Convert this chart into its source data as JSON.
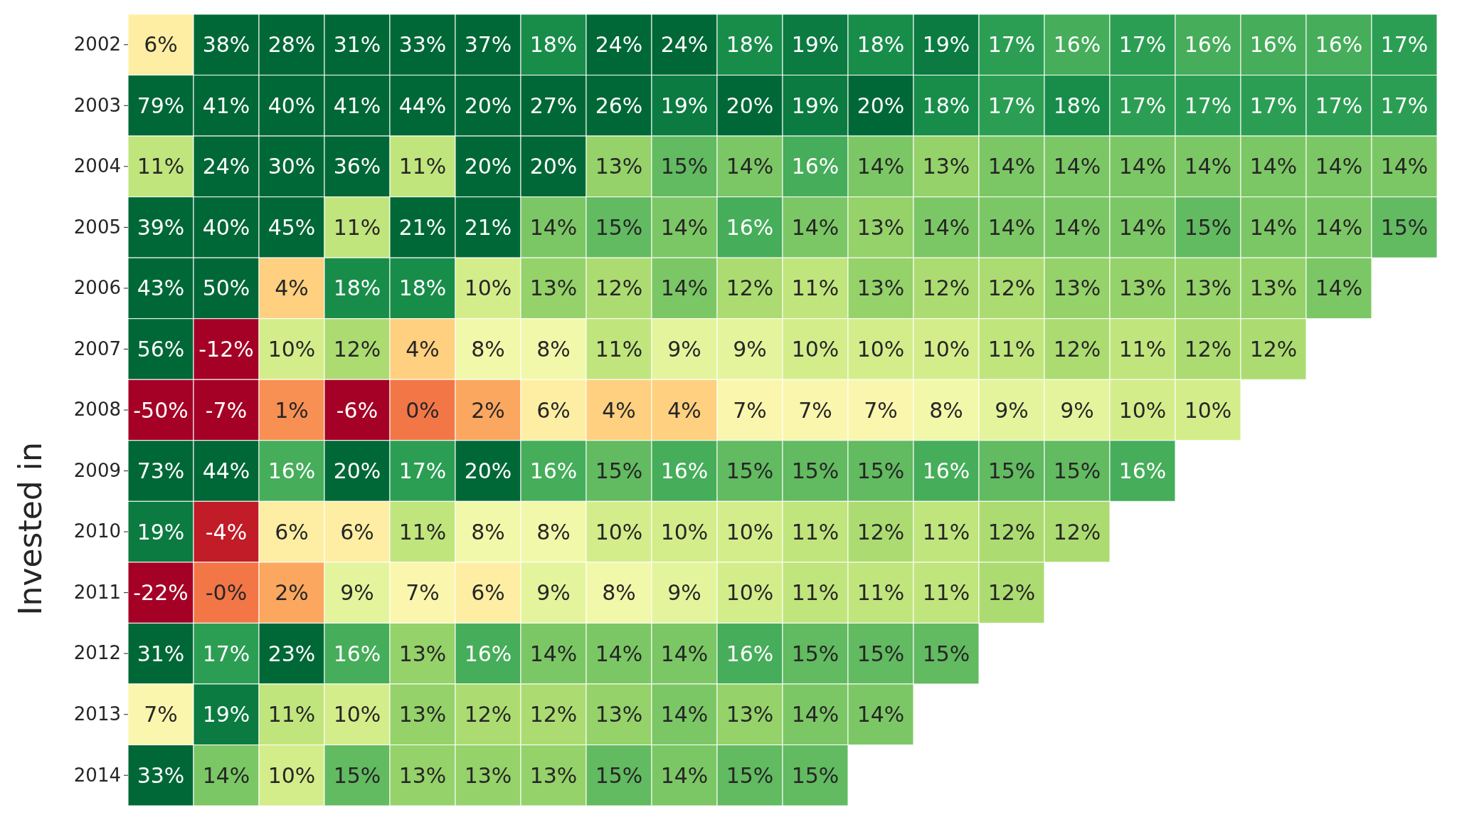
{
  "chart_data": {
    "type": "heatmap",
    "ylabel": "Invested in",
    "categories": [
      null,
      null,
      null,
      null,
      null,
      null,
      null,
      null,
      null,
      null,
      null,
      null,
      null,
      null,
      null,
      null,
      null,
      null,
      null,
      null
    ],
    "y_categories": [
      "2002",
      "2003",
      "2004",
      "2005",
      "2006",
      "2007",
      "2008",
      "2009",
      "2010",
      "2011",
      "2012",
      "2013",
      "2014"
    ],
    "cells": [
      [
        6,
        38,
        28,
        31,
        33,
        37,
        18,
        24,
        24,
        18,
        19,
        18,
        19,
        17,
        16,
        17,
        16,
        16,
        16,
        17
      ],
      [
        79,
        41,
        40,
        41,
        44,
        20,
        27,
        26,
        19,
        20,
        19,
        20,
        18,
        17,
        18,
        17,
        17,
        17,
        17,
        17
      ],
      [
        11,
        24,
        30,
        36,
        11,
        20,
        20,
        13,
        15,
        14,
        16,
        14,
        13,
        14,
        14,
        14,
        14,
        14,
        14,
        14
      ],
      [
        39,
        40,
        45,
        11,
        21,
        21,
        14,
        15,
        14,
        16,
        14,
        13,
        14,
        14,
        14,
        14,
        15,
        14,
        14,
        15
      ],
      [
        43,
        50,
        4,
        18,
        18,
        10,
        13,
        12,
        14,
        12,
        11,
        13,
        12,
        12,
        13,
        13,
        13,
        13,
        14,
        null
      ],
      [
        56,
        -12,
        10,
        12,
        4,
        8,
        8,
        11,
        9,
        9,
        10,
        10,
        10,
        11,
        12,
        11,
        12,
        12,
        null,
        null
      ],
      [
        -50,
        -7,
        1,
        -6,
        0,
        2,
        6,
        4,
        4,
        7,
        7,
        7,
        8,
        9,
        9,
        10,
        10,
        null,
        null,
        null
      ],
      [
        73,
        44,
        16,
        20,
        17,
        20,
        16,
        15,
        16,
        15,
        15,
        15,
        16,
        15,
        15,
        16,
        null,
        null,
        null,
        null
      ],
      [
        19,
        -4,
        6,
        6,
        11,
        8,
        8,
        10,
        10,
        10,
        11,
        12,
        11,
        12,
        12,
        null,
        null,
        null,
        null,
        null
      ],
      [
        -22,
        0,
        2,
        9,
        7,
        6,
        9,
        8,
        9,
        10,
        11,
        11,
        11,
        12,
        null,
        null,
        null,
        null,
        null,
        null
      ],
      [
        31,
        17,
        23,
        16,
        13,
        16,
        14,
        14,
        14,
        16,
        15,
        15,
        15,
        null,
        null,
        null,
        null,
        null,
        null,
        null
      ],
      [
        7,
        19,
        11,
        10,
        13,
        12,
        12,
        13,
        14,
        13,
        14,
        14,
        null,
        null,
        null,
        null,
        null,
        null,
        null,
        null
      ],
      [
        33,
        14,
        10,
        15,
        13,
        13,
        13,
        15,
        14,
        15,
        15,
        null,
        null,
        null,
        null,
        null,
        null,
        null,
        null,
        null
      ]
    ],
    "cell_labels": [
      [
        "6%",
        "38%",
        "28%",
        "31%",
        "33%",
        "37%",
        "18%",
        "24%",
        "24%",
        "18%",
        "19%",
        "18%",
        "19%",
        "17%",
        "16%",
        "17%",
        "16%",
        "16%",
        "16%",
        "17%"
      ],
      [
        "79%",
        "41%",
        "40%",
        "41%",
        "44%",
        "20%",
        "27%",
        "26%",
        "19%",
        "20%",
        "19%",
        "20%",
        "18%",
        "17%",
        "18%",
        "17%",
        "17%",
        "17%",
        "17%",
        "17%"
      ],
      [
        "11%",
        "24%",
        "30%",
        "36%",
        "11%",
        "20%",
        "20%",
        "13%",
        "15%",
        "14%",
        "16%",
        "14%",
        "13%",
        "14%",
        "14%",
        "14%",
        "14%",
        "14%",
        "14%",
        "14%"
      ],
      [
        "39%",
        "40%",
        "45%",
        "11%",
        "21%",
        "21%",
        "14%",
        "15%",
        "14%",
        "16%",
        "14%",
        "13%",
        "14%",
        "14%",
        "14%",
        "14%",
        "15%",
        "14%",
        "14%",
        "15%"
      ],
      [
        "43%",
        "50%",
        "4%",
        "18%",
        "18%",
        "10%",
        "13%",
        "12%",
        "14%",
        "12%",
        "11%",
        "13%",
        "12%",
        "12%",
        "13%",
        "13%",
        "13%",
        "13%",
        "14%",
        null
      ],
      [
        "56%",
        "-12%",
        "10%",
        "12%",
        "4%",
        "8%",
        "8%",
        "11%",
        "9%",
        "9%",
        "10%",
        "10%",
        "10%",
        "11%",
        "12%",
        "11%",
        "12%",
        "12%",
        null,
        null
      ],
      [
        "-50%",
        "-7%",
        "1%",
        "-6%",
        "0%",
        "2%",
        "6%",
        "4%",
        "4%",
        "7%",
        "7%",
        "7%",
        "8%",
        "9%",
        "9%",
        "10%",
        "10%",
        null,
        null,
        null
      ],
      [
        "73%",
        "44%",
        "16%",
        "20%",
        "17%",
        "20%",
        "16%",
        "15%",
        "16%",
        "15%",
        "15%",
        "15%",
        "16%",
        "15%",
        "15%",
        "16%",
        null,
        null,
        null,
        null
      ],
      [
        "19%",
        "-4%",
        "6%",
        "6%",
        "11%",
        "8%",
        "8%",
        "10%",
        "10%",
        "10%",
        "11%",
        "12%",
        "11%",
        "12%",
        "12%",
        null,
        null,
        null,
        null,
        null
      ],
      [
        "-22%",
        "-0%",
        "2%",
        "9%",
        "7%",
        "6%",
        "9%",
        "8%",
        "9%",
        "10%",
        "11%",
        "11%",
        "11%",
        "12%",
        null,
        null,
        null,
        null,
        null,
        null
      ],
      [
        "31%",
        "17%",
        "23%",
        "16%",
        "13%",
        "16%",
        "14%",
        "14%",
        "14%",
        "16%",
        "15%",
        "15%",
        "15%",
        null,
        null,
        null,
        null,
        null,
        null,
        null
      ],
      [
        "7%",
        "19%",
        "11%",
        "10%",
        "13%",
        "12%",
        "12%",
        "13%",
        "14%",
        "13%",
        "14%",
        "14%",
        null,
        null,
        null,
        null,
        null,
        null,
        null,
        null
      ],
      [
        "33%",
        "14%",
        "10%",
        "15%",
        "13%",
        "13%",
        "13%",
        "15%",
        "14%",
        "15%",
        "15%",
        null,
        null,
        null,
        null,
        null,
        null,
        null,
        null,
        null
      ]
    ]
  }
}
